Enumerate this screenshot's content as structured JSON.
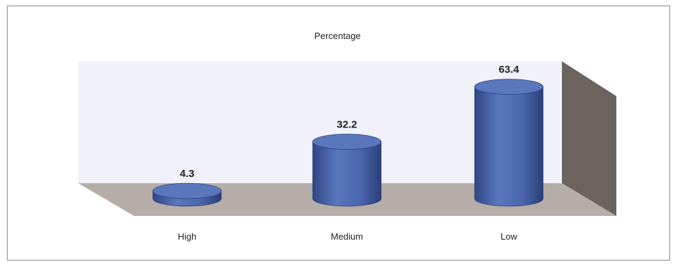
{
  "chart_data": {
    "type": "bar",
    "style": "3d-cylinder",
    "title": "Percentage",
    "categories": [
      "High",
      "Medium",
      "Low"
    ],
    "values": [
      4.3,
      32.2,
      63.4
    ],
    "ylim": [
      0,
      70
    ],
    "grid": false,
    "legend": "none",
    "xlabel": "",
    "ylabel": ""
  },
  "colors": {
    "bar": "#4a66ad",
    "bar_dark": "#2e4685",
    "bar_top": "#5a77bd",
    "floor": "#b7ada8",
    "back_wall": "#f1f1fa",
    "side_wall": "#6c625e"
  }
}
